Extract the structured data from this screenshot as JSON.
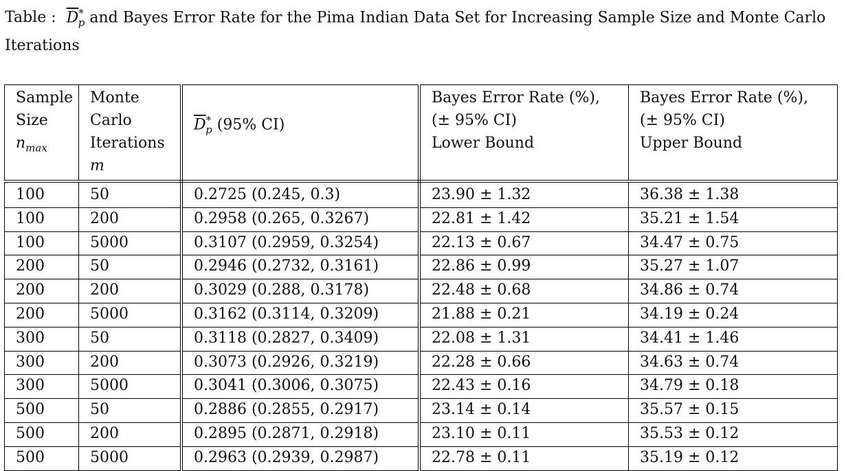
{
  "caption": {
    "label": "Table :",
    "dbar": "D",
    "sub": "p",
    "sup": "*",
    "text": "and Bayes Error Rate for the Pima Indian Data Set for Increasing Sample Size and Monte Carlo Iterations"
  },
  "table": {
    "headers": {
      "col0": [
        "Sample",
        "Size",
        "n",
        "max"
      ],
      "col1": [
        "Monte",
        "Carlo",
        "Iterations",
        "m"
      ],
      "col2": [
        "D",
        "p",
        "*",
        "(95% CI)"
      ],
      "col3": [
        "Bayes Error Rate (%),",
        "(± 95% CI)",
        "Lower Bound"
      ],
      "col4": [
        "Bayes Error Rate (%),",
        "(± 95% CI)",
        "Upper Bound"
      ]
    },
    "rows": [
      [
        "100",
        "50",
        "0.2725 (0.245, 0.3)",
        "23.90 ± 1.32",
        "36.38 ± 1.38"
      ],
      [
        "100",
        "200",
        "0.2958 (0.265, 0.3267)",
        "22.81 ± 1.42",
        "35.21 ± 1.54"
      ],
      [
        "100",
        "5000",
        "0.3107 (0.2959, 0.3254)",
        "22.13 ± 0.67",
        "34.47 ± 0.75"
      ],
      [
        "200",
        "50",
        "0.2946 (0.2732, 0.3161)",
        "22.86 ± 0.99",
        "35.27 ± 1.07"
      ],
      [
        "200",
        "200",
        "0.3029 (0.288, 0.3178)",
        "22.48 ± 0.68",
        "34.86 ± 0.74"
      ],
      [
        "200",
        "5000",
        "0.3162 (0.3114, 0.3209)",
        "21.88 ± 0.21",
        "34.19 ± 0.24"
      ],
      [
        "300",
        "50",
        "0.3118 (0.2827, 0.3409)",
        "22.08 ± 1.31",
        "34.41 ± 1.46"
      ],
      [
        "300",
        "200",
        "0.3073 (0.2926, 0.3219)",
        "22.28 ± 0.66",
        "34.63 ± 0.74"
      ],
      [
        "300",
        "5000",
        "0.3041 (0.3006, 0.3075)",
        "22.43 ± 0.16",
        "34.79 ± 0.18"
      ],
      [
        "500",
        "50",
        "0.2886 (0.2855, 0.2917)",
        "23.14 ± 0.14",
        "35.57 ± 0.15"
      ],
      [
        "500",
        "200",
        "0.2895 (0.2871, 0.2918)",
        "23.10 ± 0.11",
        "35.53 ± 0.12"
      ],
      [
        "500",
        "5000",
        "0.2963 (0.2939, 0.2987)",
        "22.78 ± 0.11",
        "35.19 ± 0.12"
      ]
    ]
  }
}
